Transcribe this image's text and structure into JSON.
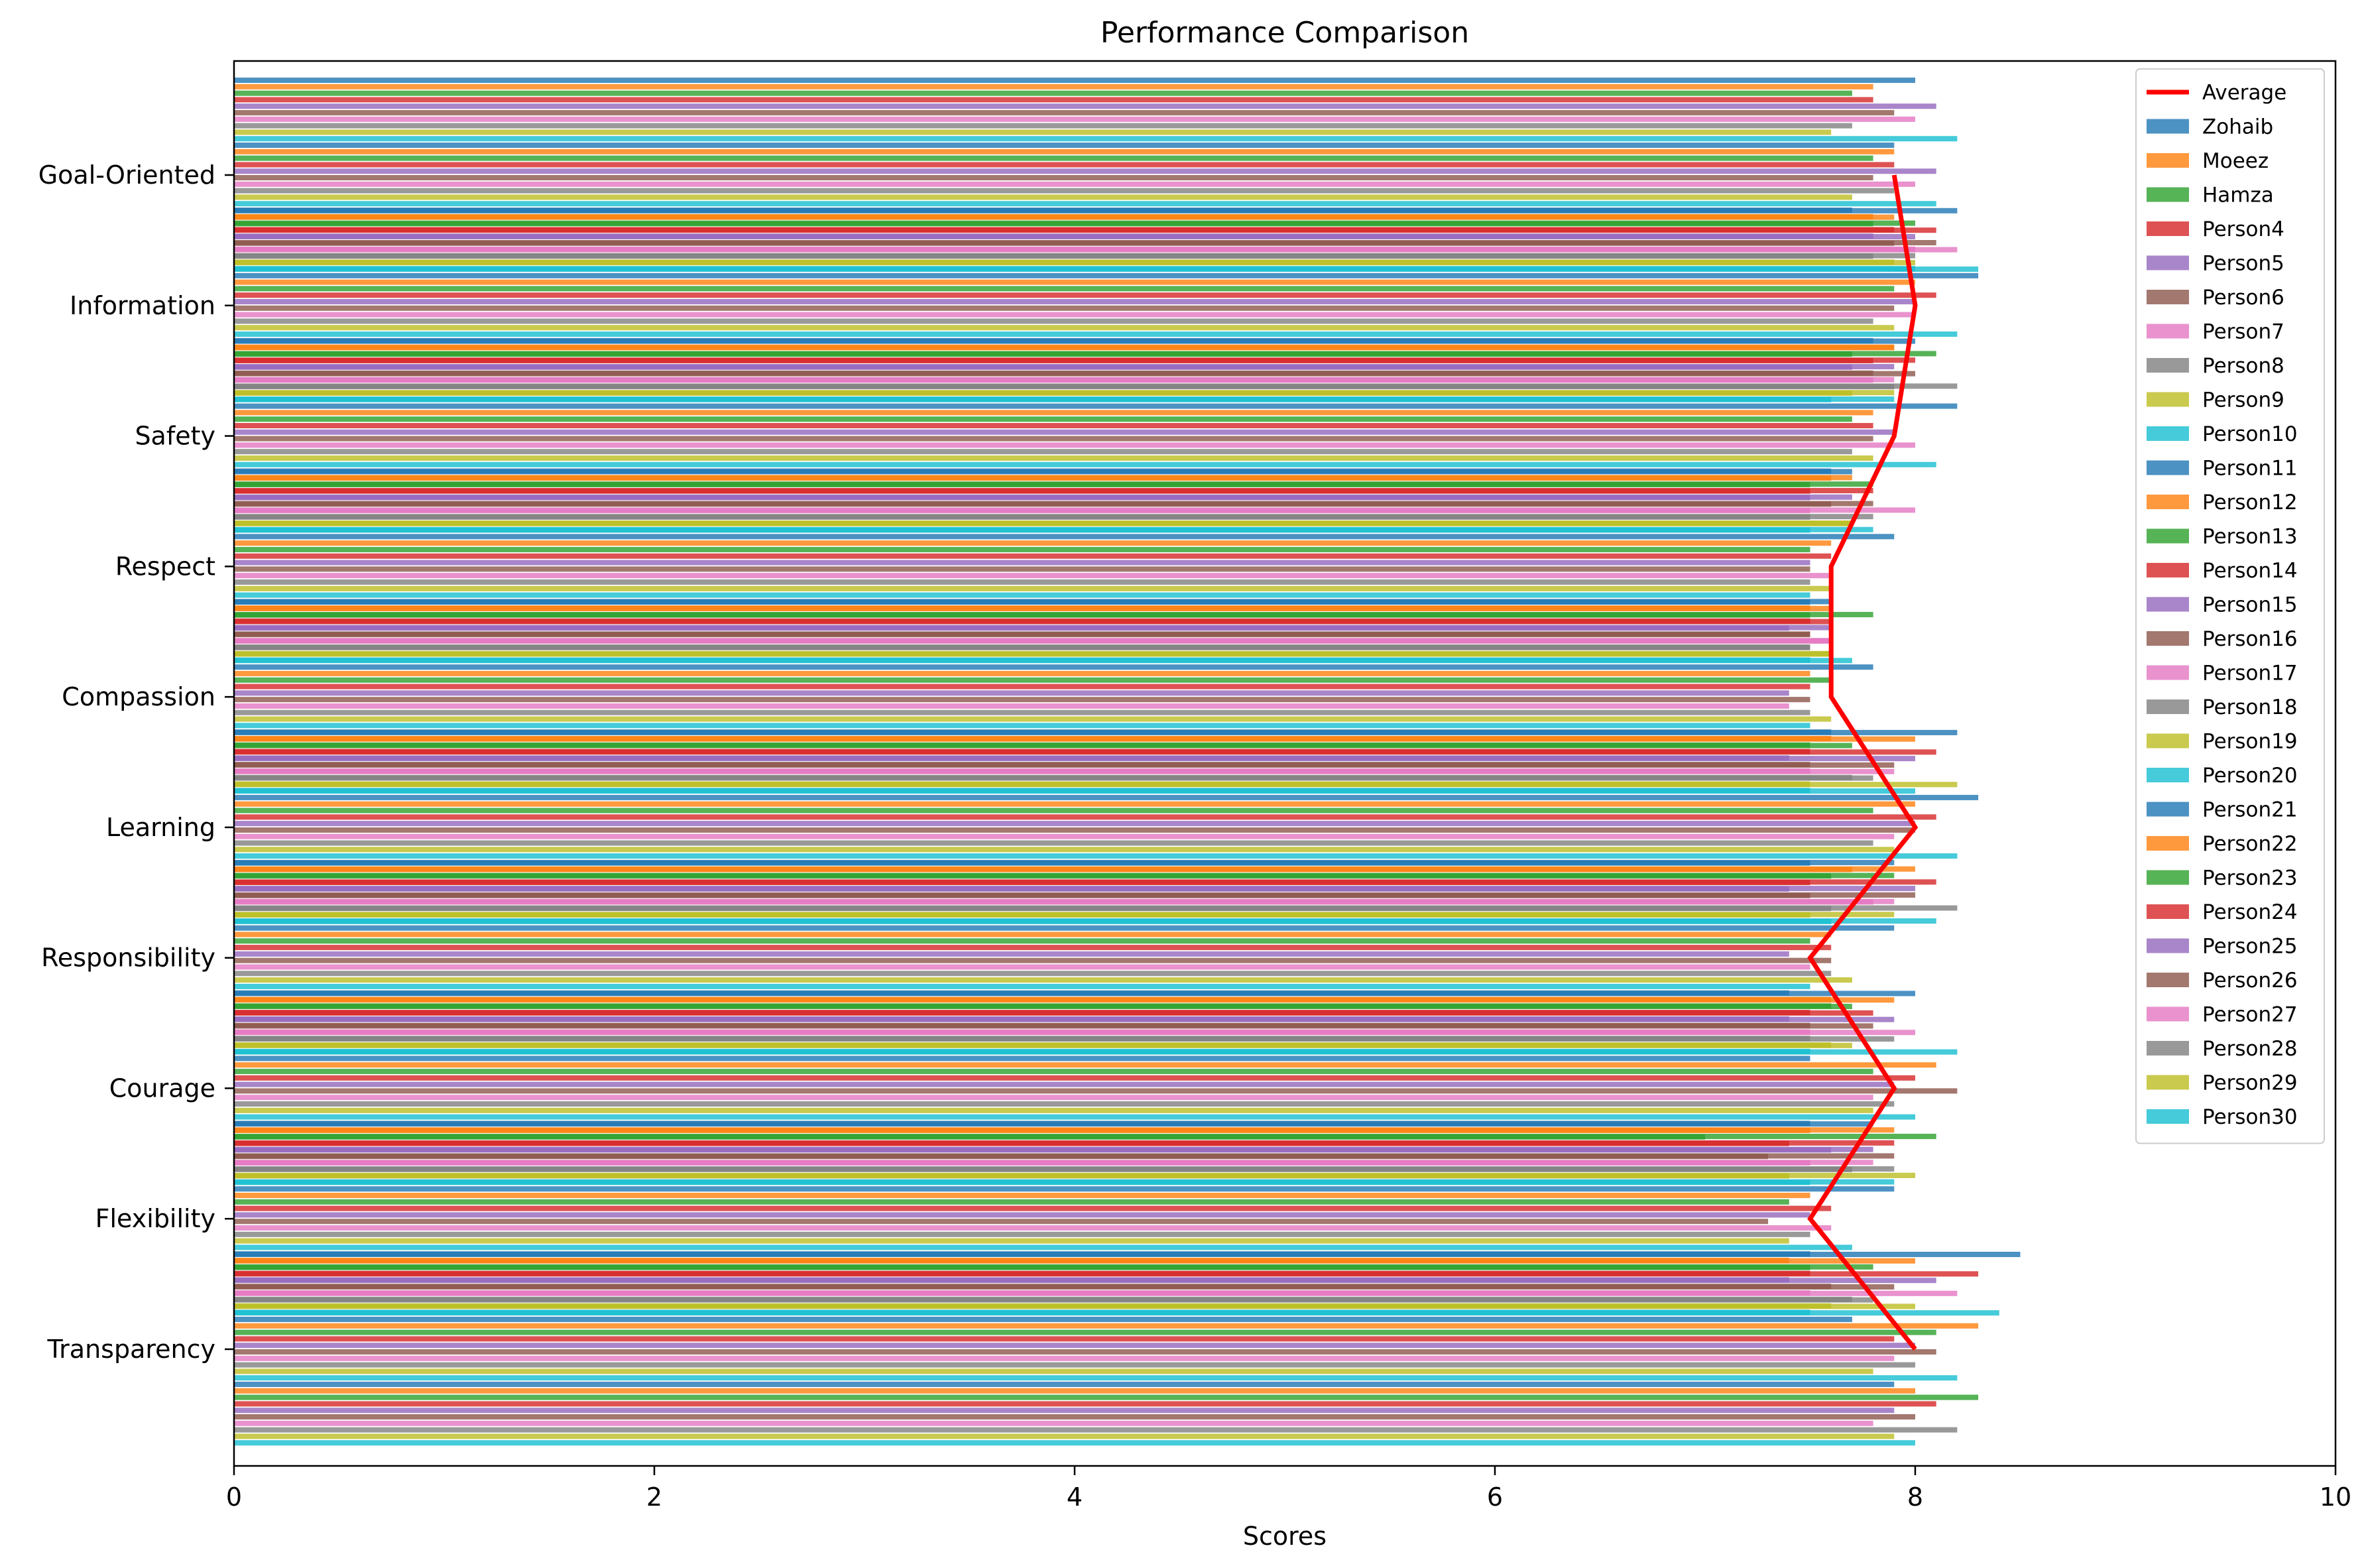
{
  "chart_data": {
    "type": "bar",
    "orientation": "horizontal",
    "title": "Performance Comparison",
    "xlabel": "Scores",
    "ylabel": "",
    "xlim": [
      0,
      10
    ],
    "xticks": [
      "0",
      "2",
      "4",
      "6",
      "8",
      "10"
    ],
    "grid": false,
    "legend_position": "top-right",
    "categories": [
      "Transparency",
      "Flexibility",
      "Courage",
      "Responsibility",
      "Learning",
      "Compassion",
      "Respect",
      "Safety",
      "Information",
      "Goal-Oriented"
    ],
    "series": [
      {
        "name": "Zohaib",
        "color": "#1f77b4",
        "values": [
          8.5,
          7.8,
          8.0,
          7.5,
          8.2,
          7.5,
          7.7,
          8.0,
          8.2,
          8.0
        ]
      },
      {
        "name": "Moeez",
        "color": "#ff7f0e",
        "values": [
          8.0,
          7.5,
          7.9,
          7.7,
          8.0,
          7.6,
          7.6,
          7.9,
          7.9,
          7.8
        ]
      },
      {
        "name": "Hamza",
        "color": "#2ca02c",
        "values": [
          7.5,
          7.0,
          7.7,
          7.6,
          7.7,
          7.5,
          7.5,
          7.7,
          7.8,
          7.7
        ]
      },
      {
        "name": "Person4",
        "color": "#d62728",
        "values": [
          8.3,
          7.4,
          7.8,
          7.5,
          8.1,
          7.6,
          7.5,
          7.8,
          8.1,
          7.8
        ]
      },
      {
        "name": "Person5",
        "color": "#9467bd",
        "values": [
          8.1,
          7.6,
          7.9,
          7.4,
          8.0,
          7.4,
          7.5,
          7.7,
          8.0,
          8.1
        ]
      },
      {
        "name": "Person6",
        "color": "#8c564b",
        "values": [
          7.9,
          7.3,
          7.8,
          7.5,
          7.9,
          7.5,
          7.6,
          8.0,
          7.9,
          7.9
        ]
      },
      {
        "name": "Person7",
        "color": "#e377c2",
        "values": [
          8.2,
          7.5,
          8.0,
          7.8,
          7.9,
          7.6,
          7.5,
          7.8,
          8.2,
          8.0
        ]
      },
      {
        "name": "Person8",
        "color": "#7f7f7f",
        "values": [
          7.8,
          7.7,
          7.9,
          7.6,
          7.8,
          7.5,
          7.5,
          7.9,
          7.8,
          7.7
        ]
      },
      {
        "name": "Person9",
        "color": "#bcbd22",
        "values": [
          8.0,
          7.4,
          7.7,
          7.5,
          8.2,
          7.6,
          7.7,
          7.7,
          8.0,
          7.6
        ]
      },
      {
        "name": "Person10",
        "color": "#17becf",
        "values": [
          8.4,
          7.5,
          8.2,
          7.6,
          8.0,
          7.7,
          7.5,
          7.6,
          8.3,
          8.2
        ]
      },
      {
        "name": "Person11",
        "color": "#1f77b4",
        "values": [
          7.7,
          7.9,
          7.5,
          7.9,
          8.3,
          7.8,
          7.9,
          8.2,
          8.3,
          7.9
        ]
      },
      {
        "name": "Person12",
        "color": "#ff7f0e",
        "values": [
          8.3,
          7.5,
          8.1,
          7.6,
          8.0,
          7.5,
          7.6,
          7.8,
          8.0,
          7.9
        ]
      },
      {
        "name": "Person13",
        "color": "#2ca02c",
        "values": [
          8.1,
          7.4,
          7.8,
          7.5,
          7.8,
          7.6,
          7.5,
          7.7,
          7.9,
          7.8
        ]
      },
      {
        "name": "Person14",
        "color": "#d62728",
        "values": [
          7.9,
          7.6,
          8.0,
          7.6,
          8.1,
          7.5,
          7.6,
          7.8,
          8.1,
          7.9
        ]
      },
      {
        "name": "Person15",
        "color": "#9467bd",
        "values": [
          8.0,
          7.5,
          7.9,
          7.4,
          8.0,
          7.4,
          7.5,
          7.9,
          8.0,
          8.1
        ]
      },
      {
        "name": "Person16",
        "color": "#8c564b",
        "values": [
          8.1,
          7.3,
          8.2,
          7.6,
          8.0,
          7.5,
          7.5,
          7.8,
          7.9,
          7.8
        ]
      },
      {
        "name": "Person17",
        "color": "#e377c2",
        "values": [
          7.9,
          7.6,
          7.8,
          7.5,
          7.9,
          7.4,
          7.6,
          8.0,
          8.0,
          8.0
        ]
      },
      {
        "name": "Person18",
        "color": "#7f7f7f",
        "values": [
          8.0,
          7.5,
          7.9,
          7.6,
          7.8,
          7.5,
          7.5,
          7.7,
          7.8,
          7.9
        ]
      },
      {
        "name": "Person19",
        "color": "#bcbd22",
        "values": [
          7.8,
          7.4,
          7.8,
          7.7,
          7.9,
          7.6,
          7.6,
          7.8,
          7.9,
          7.7
        ]
      },
      {
        "name": "Person20",
        "color": "#17becf",
        "values": [
          8.2,
          7.7,
          8.0,
          7.5,
          8.2,
          7.5,
          7.5,
          8.1,
          8.2,
          8.1
        ]
      },
      {
        "name": "Person21",
        "color": "#1f77b4",
        "values": [
          7.9,
          7.5,
          7.5,
          7.4,
          7.9,
          7.6,
          7.6,
          7.6,
          7.8,
          7.7
        ]
      },
      {
        "name": "Person22",
        "color": "#ff7f0e",
        "values": [
          8.0,
          7.4,
          7.9,
          7.6,
          8.0,
          7.6,
          7.5,
          7.7,
          7.9,
          7.8
        ]
      },
      {
        "name": "Person23",
        "color": "#2ca02c",
        "values": [
          8.3,
          7.8,
          8.1,
          7.6,
          7.9,
          7.5,
          7.8,
          7.8,
          8.1,
          8.0
        ]
      },
      {
        "name": "Person24",
        "color": "#d62728",
        "values": [
          8.1,
          7.5,
          7.9,
          7.5,
          8.1,
          7.5,
          7.5,
          7.8,
          8.0,
          7.9
        ]
      },
      {
        "name": "Person25",
        "color": "#9467bd",
        "values": [
          7.9,
          7.4,
          7.8,
          7.4,
          8.0,
          7.4,
          7.6,
          7.7,
          7.9,
          7.8
        ]
      },
      {
        "name": "Person26",
        "color": "#8c564b",
        "values": [
          8.0,
          7.6,
          7.9,
          7.5,
          8.0,
          7.5,
          7.5,
          7.8,
          7.8,
          8.1
        ]
      },
      {
        "name": "Person27",
        "color": "#e377c2",
        "values": [
          7.8,
          7.5,
          7.8,
          7.5,
          7.9,
          7.5,
          7.6,
          8.0,
          7.9,
          8.0
        ]
      },
      {
        "name": "Person28",
        "color": "#7f7f7f",
        "values": [
          8.2,
          7.7,
          7.9,
          7.5,
          8.2,
          7.7,
          7.5,
          7.8,
          8.2,
          8.0
        ]
      },
      {
        "name": "Person29",
        "color": "#bcbd22",
        "values": [
          7.9,
          7.6,
          8.0,
          7.6,
          7.9,
          7.5,
          7.6,
          7.7,
          7.9,
          7.9
        ]
      },
      {
        "name": "Person30",
        "color": "#17becf",
        "values": [
          8.0,
          7.5,
          7.9,
          7.5,
          8.1,
          7.5,
          7.5,
          7.8,
          7.9,
          8.0
        ]
      }
    ],
    "average": {
      "name": "Average",
      "color": "#ff0000",
      "values": [
        8.0,
        7.5,
        7.9,
        7.5,
        8.0,
        7.6,
        7.6,
        7.9,
        8.0,
        7.9
      ]
    }
  }
}
